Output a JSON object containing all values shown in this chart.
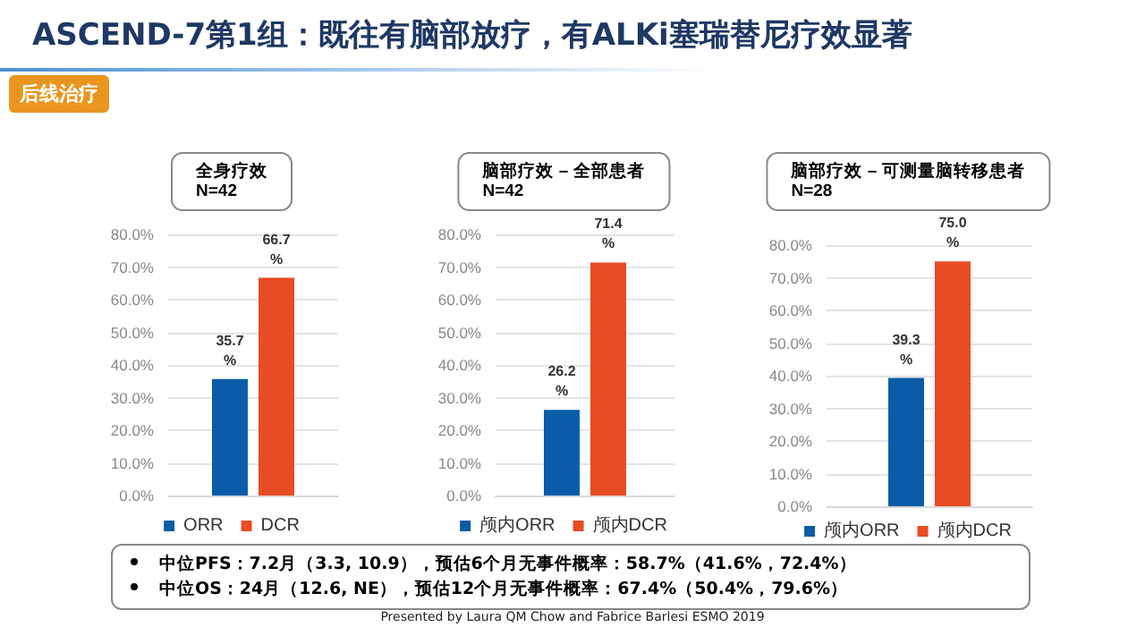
{
  "chart_data": [
    {
      "type": "other",
      "title": "ASCEND-7第1组：既往有脑部放疗，有ALKi塞瑞替尼疗效显著",
      "subtitle": "后线治疗",
      "annotations": [
        "中位PFS：7.2月（3.3, 10.9），预估6个月无事件概率：58.7%（41.6%，72.4%）",
        "中位OS：24月（12.6, NE），预估12个月无事件概率：67.4%（50.4%，79.6%）",
        "Presented by Laura QM Chow and Fabrice Barlesi ESMO 2019"
      ]
    },
    {
      "type": "bar",
      "title": "全身疗效",
      "subtitle": "N=42",
      "categories": [
        null
      ],
      "series": [
        {
          "name": "ORR",
          "color": "#0b5ca8",
          "values": [
            35.7
          ],
          "value_labels": [
            "35.7%"
          ]
        },
        {
          "name": "DCR",
          "color": "#e84c22",
          "values": [
            66.7
          ],
          "value_labels": [
            "66.7%"
          ]
        }
      ],
      "ylim": [
        0,
        80
      ],
      "yticks": [
        {
          "value": 0,
          "label": "0.0%"
        },
        {
          "value": 10,
          "label": "10.0%"
        },
        {
          "value": 20,
          "label": "20.0%"
        },
        {
          "value": 30,
          "label": "30.0%"
        },
        {
          "value": 40,
          "label": "40.0%"
        },
        {
          "value": 50,
          "label": "50.0%"
        },
        {
          "value": 60,
          "label": "60.0%"
        },
        {
          "value": 70,
          "label": "70.0%"
        },
        {
          "value": 80,
          "label": "80.0%"
        }
      ],
      "grid": "y",
      "legend": "bottom"
    },
    {
      "type": "bar",
      "title": "脑部疗效 – 全部患者",
      "subtitle": "N=42",
      "categories": [
        null
      ],
      "series": [
        {
          "name": "颅内ORR",
          "color": "#0b5ca8",
          "values": [
            26.2
          ],
          "value_labels": [
            "26.2%"
          ]
        },
        {
          "name": "颅内DCR",
          "color": "#e84c22",
          "values": [
            71.4
          ],
          "value_labels": [
            "71.4%"
          ]
        }
      ],
      "ylim": [
        0,
        80
      ],
      "yticks": [
        {
          "value": 0,
          "label": "0.0%"
        },
        {
          "value": 10,
          "label": "10.0%"
        },
        {
          "value": 20,
          "label": "20.0%"
        },
        {
          "value": 30,
          "label": "30.0%"
        },
        {
          "value": 40,
          "label": "40.0%"
        },
        {
          "value": 50,
          "label": "50.0%"
        },
        {
          "value": 60,
          "label": "60.0%"
        },
        {
          "value": 70,
          "label": "70.0%"
        },
        {
          "value": 80,
          "label": "80.0%"
        }
      ],
      "grid": "y",
      "legend": "bottom"
    },
    {
      "type": "bar",
      "title": "脑部疗效 – 可测量脑转移患者",
      "subtitle": "N=28",
      "categories": [
        null
      ],
      "series": [
        {
          "name": "颅内ORR",
          "color": "#0b5ca8",
          "values": [
            39.3
          ],
          "value_labels": [
            "39.3%"
          ]
        },
        {
          "name": "颅内DCR",
          "color": "#e84c22",
          "values": [
            75.0
          ],
          "value_labels": [
            "75.0%"
          ]
        }
      ],
      "ylim": [
        0,
        80
      ],
      "yticks": [
        {
          "value": 0,
          "label": "0.0%"
        },
        {
          "value": 10,
          "label": "10.0%"
        },
        {
          "value": 20,
          "label": "20.0%"
        },
        {
          "value": 30,
          "label": "30.0%"
        },
        {
          "value": 40,
          "label": "40.0%"
        },
        {
          "value": 50,
          "label": "50.0%"
        },
        {
          "value": 60,
          "label": "60.0%"
        },
        {
          "value": 70,
          "label": "70.0%"
        },
        {
          "value": 80,
          "label": "80.0%"
        }
      ],
      "grid": "y",
      "legend": "bottom"
    }
  ]
}
